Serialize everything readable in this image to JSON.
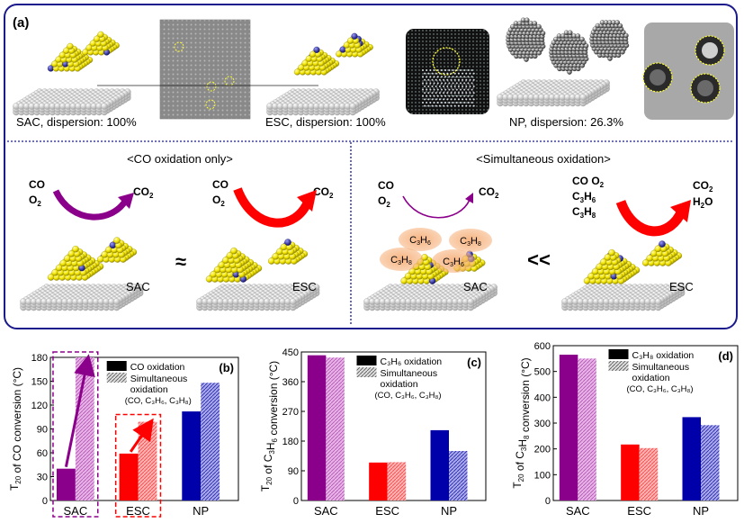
{
  "panel_a": {
    "label": "(a)",
    "top_labels": [
      "SAC, dispersion: 100%",
      "ESC, dispersion: 100%",
      "NP, dispersion: 26.3%"
    ],
    "co_only": {
      "title": "<CO oxidation only>",
      "reactant_1": "CO",
      "reactant_2": "O",
      "reactant_2_sub": "2",
      "product": "CO",
      "product_sub": "2",
      "approx_symbol": "≈",
      "sac_label": "SAC",
      "esc_label": "ESC"
    },
    "simultaneous": {
      "title": "<Simultaneous oxidation>",
      "reactant_1": "CO",
      "reactant_2": "O",
      "reactant_2_sub": "2",
      "product": "CO",
      "product_sub": "2",
      "much_less_symbol": "<<",
      "bubbles": [
        {
          "base": "C",
          "s1": "3",
          "mid": "H",
          "s2": "6"
        },
        {
          "base": "C",
          "s1": "3",
          "mid": "H",
          "s2": "8"
        },
        {
          "base": "C",
          "s1": "3",
          "mid": "H",
          "s2": "8"
        },
        {
          "base": "C",
          "s1": "3",
          "mid": "H",
          "s2": "6"
        }
      ],
      "feed": [
        "CO O",
        "C",
        "C"
      ],
      "feed_o2_sub": "2",
      "feed_c3h6": {
        "s1": "3",
        "mid": "H",
        "s2": "6"
      },
      "feed_c3h8": {
        "s1": "3",
        "mid": "H",
        "s2": "8"
      },
      "out_co2": "CO",
      "out_co2_sub": "2",
      "out_h2o": "H",
      "out_h2o_sub": "2",
      "out_h2o_end": "O",
      "sac_label": "SAC",
      "esc_label": "ESC"
    }
  },
  "colors": {
    "sac": "#8B008B",
    "sac_light": "#d99ad9",
    "esc": "#ff0000",
    "esc_light": "#ff9a9a",
    "np": "#0000aa",
    "np_light": "#8d8ddd",
    "frame": "#1a1a8c",
    "gold": "#f2e500",
    "cobalt": "#2b2bb0",
    "support": "#e6e6e6"
  },
  "chart_data": [
    {
      "panel": "(b)",
      "type": "bar",
      "ylabel_pre": "T",
      "ylabel_sub": "20",
      "ylabel_post": " of CO conversion (",
      "ylabel_unit": "°C)",
      "categories": [
        "SAC",
        "ESC",
        "NP"
      ],
      "ylim": [
        0,
        180
      ],
      "yticks": [
        "0",
        "30",
        "60",
        "90",
        "120",
        "150",
        "180"
      ],
      "legend": [
        "CO oxidation",
        "Simultaneous",
        "oxidation",
        "(CO, C₃H₆, C₃H₈)"
      ],
      "series": [
        {
          "values": [
            40,
            59,
            112
          ]
        },
        {
          "values": [
            180,
            99,
            148
          ]
        }
      ]
    },
    {
      "panel": "(c)",
      "type": "bar",
      "ylabel_pre": "T",
      "ylabel_sub": "20",
      "ylabel_post": " of C",
      "ylabel_sub2": "3",
      "ylabel_post2": "H",
      "ylabel_sub3": "6",
      "ylabel_post3": " conversion (",
      "ylabel_unit": "°C)",
      "categories": [
        "SAC",
        "ESC",
        "NP"
      ],
      "ylim": [
        0,
        450
      ],
      "yticks": [
        "0",
        "90",
        "180",
        "270",
        "360",
        "450"
      ],
      "legend": [
        "C₃H₆ oxidation",
        "Simultaneous",
        "oxidation",
        "(CO, C₃H₆, C₃H₈)"
      ],
      "series": [
        {
          "values": [
            440,
            115,
            213
          ]
        },
        {
          "values": [
            433,
            116,
            150
          ]
        }
      ]
    },
    {
      "panel": "(d)",
      "type": "bar",
      "ylabel_pre": "T",
      "ylabel_sub": "20",
      "ylabel_post": " of C",
      "ylabel_sub2": "3",
      "ylabel_post2": "H",
      "ylabel_sub3": "8",
      "ylabel_post3": " conversion (",
      "ylabel_unit": "°C)",
      "categories": [
        "SAC",
        "ESC",
        "NP"
      ],
      "ylim": [
        0,
        600
      ],
      "yticks": [
        "0",
        "100",
        "200",
        "300",
        "400",
        "500",
        "600"
      ],
      "legend": [
        "C₃H₈ oxidation",
        "Simultaneous",
        "oxidation",
        "(CO, C₃H₆, C₃H₈)"
      ],
      "series": [
        {
          "values": [
            565,
            217,
            323
          ]
        },
        {
          "values": [
            550,
            203,
            292
          ]
        }
      ]
    }
  ]
}
